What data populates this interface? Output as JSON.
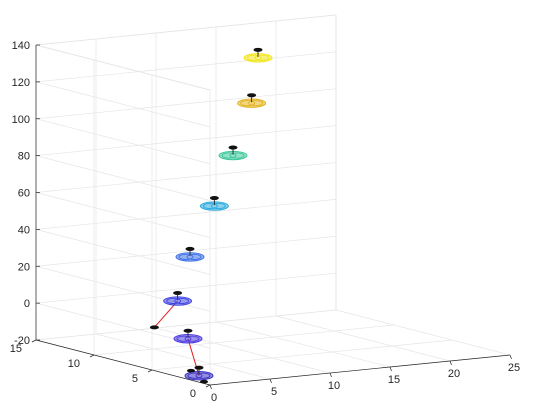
{
  "chart_data": {
    "type": "scatter",
    "title": "",
    "xlabel": "",
    "ylabel": "",
    "zlabel": "",
    "xlim": [
      0,
      25
    ],
    "ylim": [
      0,
      15
    ],
    "zlim": [
      -20,
      140
    ],
    "x_ticks": [
      "0",
      "5",
      "10",
      "15",
      "20",
      "25"
    ],
    "y_ticks": [
      "0",
      "5",
      "10",
      "15"
    ],
    "z_ticks": [
      "-20",
      "0",
      "20",
      "40",
      "60",
      "80",
      "100",
      "120",
      "140"
    ],
    "grid": true,
    "series": [
      {
        "marker": "drone",
        "points": [
          {
            "x": 1.5,
            "y": 2.5,
            "z": -20,
            "color": "#3a2fc4"
          },
          {
            "x": 3.0,
            "y": 5.0,
            "z": -5,
            "color": "#4a3ae0"
          },
          {
            "x": 6.0,
            "y": 9.0,
            "z": 7,
            "color": "#3f45e0"
          },
          {
            "x": 8.0,
            "y": 10.0,
            "z": 28,
            "color": "#3d6fe6"
          },
          {
            "x": 11.0,
            "y": 11.0,
            "z": 52,
            "color": "#28a9de"
          },
          {
            "x": 14.0,
            "y": 12.5,
            "z": 75,
            "color": "#3cc79a"
          },
          {
            "x": 17.0,
            "y": 14.0,
            "z": 99,
            "color": "#e3b31e"
          },
          {
            "x": 18.5,
            "y": 15.0,
            "z": 121,
            "color": "#f2e51a"
          }
        ]
      }
    ],
    "connectors": [
      {
        "from": {
          "x": 0.2,
          "y": 5.0,
          "z": 3
        },
        "to": {
          "x": 6.0,
          "y": 9.0,
          "z": 7
        },
        "color": "#e41a1c"
      },
      {
        "from": {
          "x": 1.5,
          "y": 2.5,
          "z": -20
        },
        "to": {
          "x": 3.0,
          "y": 5.0,
          "z": -5
        },
        "color": "#e41a1c"
      }
    ],
    "extra_markers": [
      {
        "x": 0.2,
        "y": 5.0,
        "z": 3,
        "color": "#111111"
      }
    ]
  }
}
